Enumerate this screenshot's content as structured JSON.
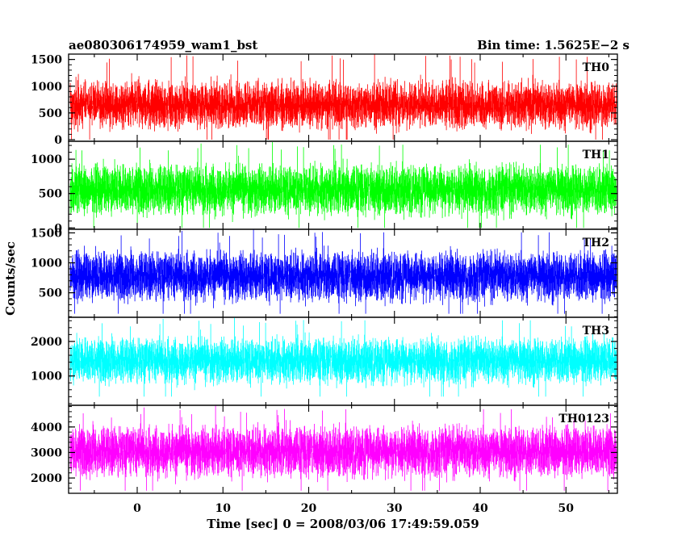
{
  "header": {
    "title": "ae080306174959_wam1_bst",
    "bin_time": "Bin time: 1.5625E−2 s"
  },
  "chart_data": {
    "type": "line",
    "xlabel": "Time [sec] 0 = 2008/03/06 17:49:59.059",
    "ylabel": "Counts/sec",
    "xlim": [
      -8,
      56
    ],
    "xticks": [
      0,
      10,
      20,
      30,
      40,
      50
    ],
    "x_data_range": [
      -7.8,
      55.9
    ],
    "panels": [
      {
        "name": "TH0",
        "color": "#ff0000",
        "ylim": [
          -30,
          1600
        ],
        "yticks": [
          0,
          500,
          1000,
          1500
        ],
        "typical_range": [
          0,
          1350
        ],
        "peak": 1600,
        "center": 650
      },
      {
        "name": "TH1",
        "color": "#00ff00",
        "ylim": [
          -20,
          1260
        ],
        "yticks": [
          0,
          500,
          1000
        ],
        "typical_range": [
          0,
          1100
        ],
        "peak": 1250,
        "center": 560
      },
      {
        "name": "TH2",
        "color": "#0000ff",
        "ylim": [
          90,
          1560
        ],
        "yticks": [
          500,
          1000,
          1500
        ],
        "typical_range": [
          150,
          1400
        ],
        "peak": 1560,
        "center": 780
      },
      {
        "name": "TH3",
        "color": "#00ffff",
        "ylim": [
          150,
          2700
        ],
        "yticks": [
          1000,
          2000
        ],
        "typical_range": [
          400,
          2400
        ],
        "peak": 2700,
        "center": 1450
      },
      {
        "name": "TH0123",
        "color": "#ff00ff",
        "ylim": [
          1400,
          4850
        ],
        "yticks": [
          2000,
          3000,
          4000
        ],
        "typical_range": [
          1500,
          4500
        ],
        "peak": 4850,
        "center": 3050
      }
    ]
  }
}
